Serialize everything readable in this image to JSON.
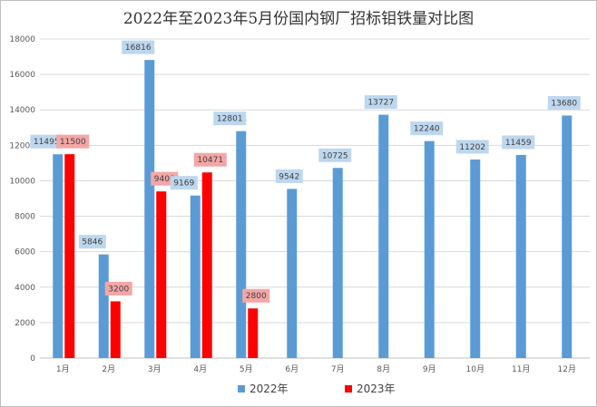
{
  "chart_data": {
    "type": "bar",
    "title": "2022年至2023年5月份国内钢厂招标钼铁量对比图",
    "xlabel": "",
    "ylabel": "",
    "categories": [
      "1月",
      "2月",
      "3月",
      "4月",
      "5月",
      "6月",
      "7月",
      "8月",
      "9月",
      "10月",
      "11月",
      "12月"
    ],
    "series": [
      {
        "name": "2022年",
        "color": "#5b9bd5",
        "label_bg": "#bdd7ee",
        "values": [
          11495,
          5846,
          16816,
          9169,
          12801,
          9542,
          10725,
          13727,
          12240,
          11202,
          11459,
          13680
        ]
      },
      {
        "name": "2023年",
        "color": "#ff0000",
        "label_bg": "#f4a6a6",
        "values": [
          11500,
          3200,
          9400,
          10471,
          2800,
          null,
          null,
          null,
          null,
          null,
          null,
          null
        ]
      }
    ],
    "ylim": [
      0,
      18000
    ],
    "yticks": [
      0,
      2000,
      4000,
      6000,
      8000,
      10000,
      12000,
      14000,
      16000,
      18000
    ],
    "grid": true,
    "legend": "bottom"
  }
}
